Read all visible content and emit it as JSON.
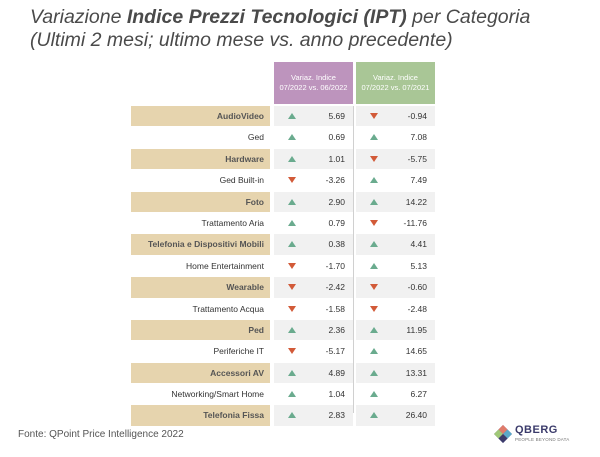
{
  "title": {
    "line1_prefix": "Variazione ",
    "line1_bold": "Indice Prezzi Tecnologici (IPT)",
    "line1_suffix": " per Categoria",
    "line2": "(Ultimi 2 mesi; ultimo mese vs. anno precedente)"
  },
  "colors": {
    "header_mom": "#bd94bd",
    "header_yoy": "#a9c696",
    "category_band": "#e6d4ae",
    "up": "#6aab8e",
    "down": "#d25a38"
  },
  "source": "Fonte: QPoint Price Intelligence 2022",
  "logo": {
    "name": "QBERG",
    "tagline": "PEOPLE BEYOND DATA"
  },
  "chart_data": {
    "type": "table",
    "columns": [
      {
        "title": "Variaz. Indice",
        "subtitle": "07/2022 vs. 06/2022"
      },
      {
        "title": "Variaz. Indice",
        "subtitle": "07/2022 vs. 07/2021"
      }
    ],
    "rows": [
      {
        "category": "AudioVideo",
        "mom": "5.69",
        "mom_dir": "up",
        "yoy": "-0.94",
        "yoy_dir": "down"
      },
      {
        "category": "Ged",
        "mom": "0.69",
        "mom_dir": "up",
        "yoy": "7.08",
        "yoy_dir": "up"
      },
      {
        "category": "Hardware",
        "mom": "1.01",
        "mom_dir": "up",
        "yoy": "-5.75",
        "yoy_dir": "down"
      },
      {
        "category": "Ged Built-in",
        "mom": "-3.26",
        "mom_dir": "down",
        "yoy": "7.49",
        "yoy_dir": "up"
      },
      {
        "category": "Foto",
        "mom": "2.90",
        "mom_dir": "up",
        "yoy": "14.22",
        "yoy_dir": "up"
      },
      {
        "category": "Trattamento Aria",
        "mom": "0.79",
        "mom_dir": "up",
        "yoy": "-11.76",
        "yoy_dir": "down"
      },
      {
        "category": "Telefonia e Dispositivi Mobili",
        "mom": "0.38",
        "mom_dir": "up",
        "yoy": "4.41",
        "yoy_dir": "up"
      },
      {
        "category": "Home Entertainment",
        "mom": "-1.70",
        "mom_dir": "down",
        "yoy": "5.13",
        "yoy_dir": "up"
      },
      {
        "category": "Wearable",
        "mom": "-2.42",
        "mom_dir": "down",
        "yoy": "-0.60",
        "yoy_dir": "down"
      },
      {
        "category": "Trattamento Acqua",
        "mom": "-1.58",
        "mom_dir": "down",
        "yoy": "-2.48",
        "yoy_dir": "down"
      },
      {
        "category": "Ped",
        "mom": "2.36",
        "mom_dir": "up",
        "yoy": "11.95",
        "yoy_dir": "up"
      },
      {
        "category": "Periferiche IT",
        "mom": "-5.17",
        "mom_dir": "down",
        "yoy": "14.65",
        "yoy_dir": "up"
      },
      {
        "category": "Accessori AV",
        "mom": "4.89",
        "mom_dir": "up",
        "yoy": "13.31",
        "yoy_dir": "up"
      },
      {
        "category": "Networking/Smart Home",
        "mom": "1.04",
        "mom_dir": "up",
        "yoy": "6.27",
        "yoy_dir": "up"
      },
      {
        "category": "Telefonia Fissa",
        "mom": "2.83",
        "mom_dir": "up",
        "yoy": "26.40",
        "yoy_dir": "up"
      }
    ]
  }
}
